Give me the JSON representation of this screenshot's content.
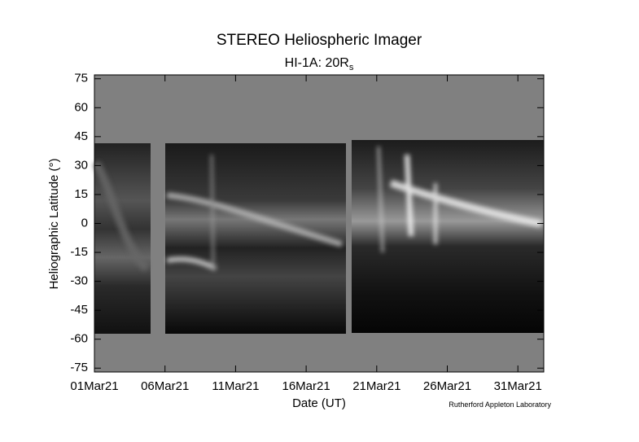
{
  "chart_data": {
    "type": "image-map",
    "title": "STEREO Heliospheric Imager",
    "subtitle": "HI-1A: 20R",
    "subtitle_subscript": "s",
    "x_label": "Date (UT)",
    "y_label": "Heliographic Latitude (°)",
    "credit": "Rutherford Appleton Laboratory",
    "xlim": [
      "2021-03-01T00:00:00Z",
      "2021-04-01T20:00:00Z"
    ],
    "xticks": [
      {
        "value": "2021-03-01T00:00:00Z",
        "label": "01Mar21"
      },
      {
        "value": "2021-03-06T00:00:00Z",
        "label": "06Mar21"
      },
      {
        "value": "2021-03-11T00:00:00Z",
        "label": "11Mar21"
      },
      {
        "value": "2021-03-16T00:00:00Z",
        "label": "16Mar21"
      },
      {
        "value": "2021-03-21T00:00:00Z",
        "label": "21Mar21"
      },
      {
        "value": "2021-03-26T00:00:00Z",
        "label": "26Mar21"
      },
      {
        "value": "2021-03-31T00:00:00Z",
        "label": "31Mar21"
      }
    ],
    "ylim": [
      -77,
      77
    ],
    "yticks": [
      -75,
      -60,
      -45,
      -30,
      -15,
      0,
      15,
      30,
      45,
      60,
      75
    ]
  }
}
